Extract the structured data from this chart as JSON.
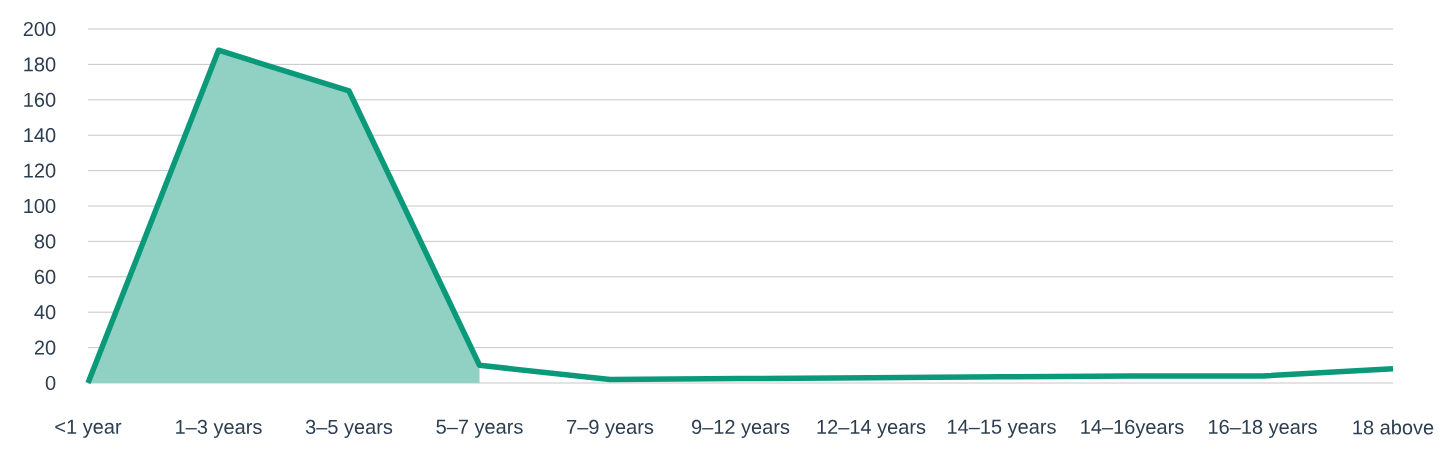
{
  "chart_data": {
    "type": "line",
    "categories": [
      "<1 year",
      "1–3 years",
      "3–5 years",
      "5–7 years",
      "7–9 years",
      "9–12 years",
      "12–14 years",
      "14–15 years",
      "14–16years",
      "16–18 years",
      "18 above"
    ],
    "series": [
      {
        "type": "area",
        "color": "#90d1c3",
        "values": [
          0,
          188,
          165,
          10,
          null,
          null,
          null,
          null,
          null,
          null,
          null
        ]
      },
      {
        "color": "#0a9a7a",
        "values": [
          0,
          188,
          165,
          10,
          2,
          2.5,
          3,
          3.5,
          4,
          4,
          8
        ]
      }
    ],
    "ylim": [
      0,
      200
    ],
    "yticks": [
      0,
      20,
      40,
      60,
      80,
      100,
      120,
      140,
      160,
      180,
      200
    ],
    "grid": "y"
  }
}
